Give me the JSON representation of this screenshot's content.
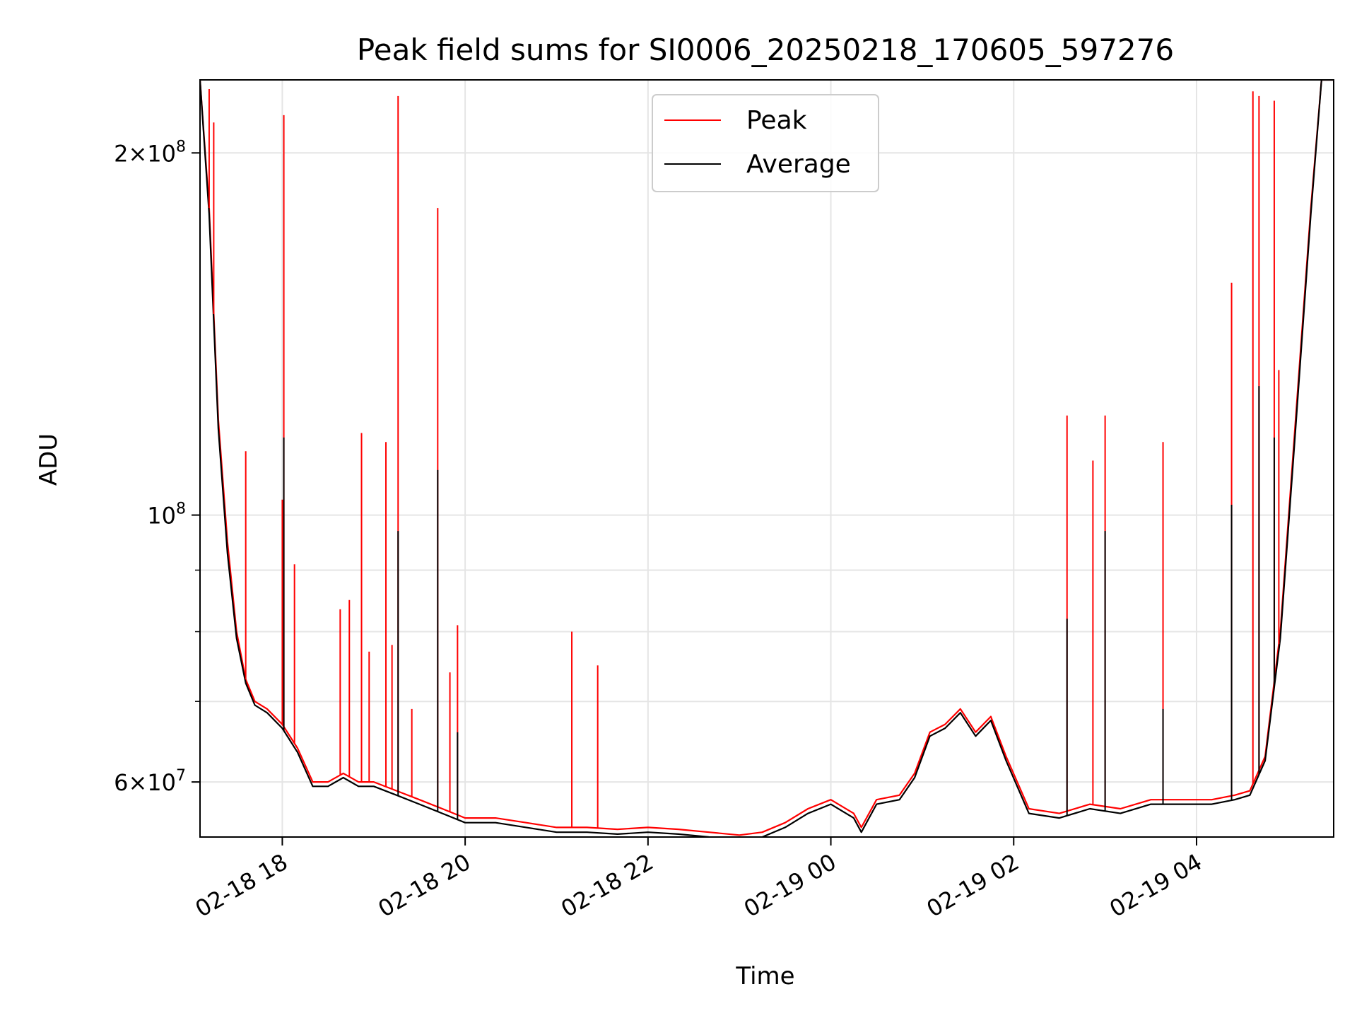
{
  "chart_data": {
    "type": "line",
    "title": "Peak field sums for SI0006_20250218_170605_597276",
    "xlabel": "Time",
    "ylabel": "ADU",
    "yscale": "log",
    "xlim": [
      "2025-02-18 17:06",
      "2025-02-19 05:30"
    ],
    "ylim": [
      54000000,
      230000000
    ],
    "grid": true,
    "legend_position": "top-center",
    "x_tick_labels": [
      "02-18 18",
      "02-18 20",
      "02-18 22",
      "02-19 00",
      "02-19 02",
      "02-19 04"
    ],
    "x_tick_values": [
      "2025-02-18 18:00",
      "2025-02-18 20:00",
      "2025-02-18 22:00",
      "2025-02-19 00:00",
      "2025-02-19 02:00",
      "2025-02-19 04:00"
    ],
    "y_major_tick_labels": [
      {
        "prefix": "2×10",
        "exp": "8",
        "value": 200000000
      },
      {
        "prefix": "10",
        "exp": "8",
        "value": 100000000
      },
      {
        "prefix": "6×10",
        "exp": "7",
        "value": 60000000
      }
    ],
    "y_minor_ticks": [
      70000000,
      80000000,
      90000000
    ],
    "series": [
      {
        "name": "Peak",
        "color": "#ff0000",
        "x": [
          "2025-02-18 17:06",
          "2025-02-18 17:12",
          "2025-02-18 17:18",
          "2025-02-18 17:24",
          "2025-02-18 17:30",
          "2025-02-18 17:36",
          "2025-02-18 17:42",
          "2025-02-18 17:50",
          "2025-02-18 18:00",
          "2025-02-18 18:10",
          "2025-02-18 18:20",
          "2025-02-18 18:30",
          "2025-02-18 18:40",
          "2025-02-18 18:50",
          "2025-02-18 19:00",
          "2025-02-18 19:15",
          "2025-02-18 19:30",
          "2025-02-18 19:45",
          "2025-02-18 20:00",
          "2025-02-18 20:20",
          "2025-02-18 20:40",
          "2025-02-18 21:00",
          "2025-02-18 21:20",
          "2025-02-18 21:40",
          "2025-02-18 22:00",
          "2025-02-18 22:20",
          "2025-02-18 22:40",
          "2025-02-18 23:00",
          "2025-02-18 23:15",
          "2025-02-18 23:30",
          "2025-02-18 23:45",
          "2025-02-19 00:00",
          "2025-02-19 00:15",
          "2025-02-19 00:20",
          "2025-02-19 00:30",
          "2025-02-19 00:45",
          "2025-02-19 00:55",
          "2025-02-19 01:05",
          "2025-02-19 01:15",
          "2025-02-19 01:25",
          "2025-02-19 01:35",
          "2025-02-19 01:45",
          "2025-02-19 01:55",
          "2025-02-19 02:10",
          "2025-02-19 02:30",
          "2025-02-19 02:50",
          "2025-02-19 03:10",
          "2025-02-19 03:30",
          "2025-02-19 03:50",
          "2025-02-19 04:10",
          "2025-02-19 04:25",
          "2025-02-19 04:35",
          "2025-02-19 04:45",
          "2025-02-19 04:55",
          "2025-02-19 05:05",
          "2025-02-19 05:15",
          "2025-02-19 05:22",
          "2025-02-19 05:30"
        ],
        "values": [
          230000000,
          180000000,
          120000000,
          95000000,
          80000000,
          73000000,
          70000000,
          69000000,
          67000000,
          64000000,
          60000000,
          60000000,
          61000000,
          60000000,
          60000000,
          59000000,
          58000000,
          57000000,
          56000000,
          56000000,
          55500000,
          55000000,
          55000000,
          54800000,
          55000000,
          54800000,
          54500000,
          54200000,
          54500000,
          55500000,
          57000000,
          58000000,
          56500000,
          55000000,
          58000000,
          58500000,
          61000000,
          66000000,
          67000000,
          69000000,
          66000000,
          68000000,
          63000000,
          57000000,
          56500000,
          57500000,
          57000000,
          58000000,
          58000000,
          58000000,
          58500000,
          59000000,
          63000000,
          80000000,
          120000000,
          180000000,
          230000000,
          230000000
        ]
      },
      {
        "name": "Average",
        "color": "#000000",
        "x": [
          "2025-02-18 17:06",
          "2025-02-18 17:12",
          "2025-02-18 17:18",
          "2025-02-18 17:24",
          "2025-02-18 17:30",
          "2025-02-18 17:36",
          "2025-02-18 17:42",
          "2025-02-18 17:50",
          "2025-02-18 18:00",
          "2025-02-18 18:10",
          "2025-02-18 18:20",
          "2025-02-18 18:30",
          "2025-02-18 18:40",
          "2025-02-18 18:50",
          "2025-02-18 19:00",
          "2025-02-18 19:15",
          "2025-02-18 19:30",
          "2025-02-18 19:45",
          "2025-02-18 20:00",
          "2025-02-18 20:20",
          "2025-02-18 20:40",
          "2025-02-18 21:00",
          "2025-02-18 21:20",
          "2025-02-18 21:40",
          "2025-02-18 22:00",
          "2025-02-18 22:20",
          "2025-02-18 22:40",
          "2025-02-18 23:00",
          "2025-02-18 23:15",
          "2025-02-18 23:30",
          "2025-02-18 23:45",
          "2025-02-19 00:00",
          "2025-02-19 00:15",
          "2025-02-19 00:20",
          "2025-02-19 00:30",
          "2025-02-19 00:45",
          "2025-02-19 00:55",
          "2025-02-19 01:05",
          "2025-02-19 01:15",
          "2025-02-19 01:25",
          "2025-02-19 01:35",
          "2025-02-19 01:45",
          "2025-02-19 01:55",
          "2025-02-19 02:10",
          "2025-02-19 02:30",
          "2025-02-19 02:50",
          "2025-02-19 03:10",
          "2025-02-19 03:30",
          "2025-02-19 03:50",
          "2025-02-19 04:10",
          "2025-02-19 04:25",
          "2025-02-19 04:35",
          "2025-02-19 04:45",
          "2025-02-19 04:55",
          "2025-02-19 05:05",
          "2025-02-19 05:15",
          "2025-02-19 05:22",
          "2025-02-19 05:30"
        ],
        "values": [
          230000000,
          178000000,
          118000000,
          93000000,
          79000000,
          72500000,
          69500000,
          68500000,
          66500000,
          63500000,
          59500000,
          59500000,
          60500000,
          59500000,
          59500000,
          58500000,
          57500000,
          56500000,
          55500000,
          55500000,
          55000000,
          54500000,
          54500000,
          54300000,
          54500000,
          54300000,
          54000000,
          53800000,
          54000000,
          55000000,
          56500000,
          57500000,
          56000000,
          54500000,
          57500000,
          58000000,
          60500000,
          65500000,
          66500000,
          68500000,
          65500000,
          67500000,
          62500000,
          56500000,
          56000000,
          57000000,
          56500000,
          57500000,
          57500000,
          57500000,
          58000000,
          58500000,
          62500000,
          79000000,
          118000000,
          178000000,
          230000000,
          230000000
        ]
      }
    ],
    "spikes": {
      "peak": [
        {
          "x": "2025-02-18 17:12",
          "y": 226000000
        },
        {
          "x": "2025-02-18 17:15",
          "y": 212000000
        },
        {
          "x": "2025-02-18 17:36",
          "y": 113000000
        },
        {
          "x": "2025-02-18 18:00",
          "y": 103000000
        },
        {
          "x": "2025-02-18 18:01",
          "y": 215000000
        },
        {
          "x": "2025-02-18 18:08",
          "y": 91000000
        },
        {
          "x": "2025-02-18 18:38",
          "y": 83500000
        },
        {
          "x": "2025-02-18 18:44",
          "y": 85000000
        },
        {
          "x": "2025-02-18 18:52",
          "y": 117000000
        },
        {
          "x": "2025-02-18 18:57",
          "y": 77000000
        },
        {
          "x": "2025-02-18 19:08",
          "y": 115000000
        },
        {
          "x": "2025-02-18 19:12",
          "y": 78000000
        },
        {
          "x": "2025-02-18 19:16",
          "y": 223000000
        },
        {
          "x": "2025-02-18 19:25",
          "y": 69000000
        },
        {
          "x": "2025-02-18 19:42",
          "y": 180000000
        },
        {
          "x": "2025-02-18 19:50",
          "y": 74000000
        },
        {
          "x": "2025-02-18 19:55",
          "y": 81000000
        },
        {
          "x": "2025-02-18 21:10",
          "y": 80000000
        },
        {
          "x": "2025-02-18 21:27",
          "y": 75000000
        },
        {
          "x": "2025-02-19 02:35",
          "y": 121000000
        },
        {
          "x": "2025-02-19 02:52",
          "y": 111000000
        },
        {
          "x": "2025-02-19 03:00",
          "y": 121000000
        },
        {
          "x": "2025-02-19 03:38",
          "y": 115000000
        },
        {
          "x": "2025-02-19 04:23",
          "y": 156000000
        },
        {
          "x": "2025-02-19 04:37",
          "y": 225000000
        },
        {
          "x": "2025-02-19 04:41",
          "y": 223000000
        },
        {
          "x": "2025-02-19 04:51",
          "y": 221000000
        },
        {
          "x": "2025-02-19 04:54",
          "y": 132000000
        }
      ],
      "average": [
        {
          "x": "2025-02-18 18:01",
          "y": 116000000
        },
        {
          "x": "2025-02-18 19:16",
          "y": 97000000
        },
        {
          "x": "2025-02-18 19:42",
          "y": 109000000
        },
        {
          "x": "2025-02-18 19:55",
          "y": 66000000
        },
        {
          "x": "2025-02-19 02:35",
          "y": 82000000
        },
        {
          "x": "2025-02-19 03:00",
          "y": 97000000
        },
        {
          "x": "2025-02-19 03:38",
          "y": 69000000
        },
        {
          "x": "2025-02-19 04:23",
          "y": 102000000
        },
        {
          "x": "2025-02-19 04:41",
          "y": 128000000
        },
        {
          "x": "2025-02-19 04:51",
          "y": 116000000
        }
      ]
    }
  }
}
